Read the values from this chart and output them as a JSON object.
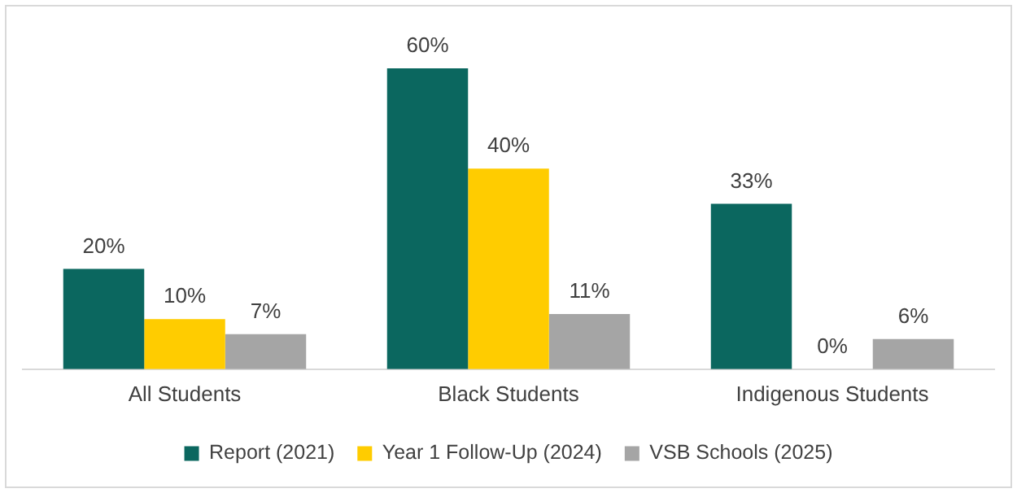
{
  "chart_data": {
    "type": "bar",
    "categories": [
      "All Students",
      "Black Students",
      "Indigenous Students"
    ],
    "series": [
      {
        "name": "Report (2021)",
        "color": "#0b675f",
        "values": [
          20,
          60,
          33
        ],
        "value_labels": [
          "20%",
          "60%",
          "33%"
        ]
      },
      {
        "name": "Year 1 Follow-Up (2024)",
        "color": "#ffcc00",
        "values": [
          10,
          40,
          0
        ],
        "value_labels": [
          "10%",
          "40%",
          "0%"
        ]
      },
      {
        "name": "VSB Schools (2025)",
        "color": "#a5a5a5",
        "values": [
          7,
          11,
          6
        ],
        "value_labels": [
          "7%",
          "11%",
          "6%"
        ]
      }
    ],
    "legend": "bottom",
    "grid": false
  }
}
